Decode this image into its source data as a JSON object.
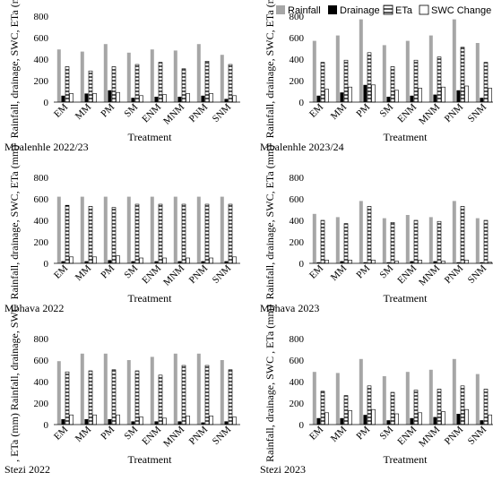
{
  "legend": {
    "entries": [
      {
        "label": "Rainfall",
        "key": "rainfall",
        "color": "#a6a6a6"
      },
      {
        "label": "Drainage",
        "key": "drainage",
        "color": "#000000"
      },
      {
        "label": "ETa",
        "key": "eta",
        "color": "#ffffff"
      },
      {
        "label": "SWC Change",
        "key": "swc",
        "color": "#ffffff"
      }
    ]
  },
  "chart_data": [
    {
      "type": "bar",
      "caption": "Mbalenhle 2022/23",
      "xlabel": "Treatment",
      "ylabel": "Rainfall, drainage, SWC, ETa (mm)",
      "ylim": [
        0,
        800
      ],
      "yticks": [
        0,
        200,
        400,
        600,
        800
      ],
      "categories": [
        "EM",
        "MM",
        "PM",
        "SM",
        "ENM",
        "MNM",
        "PNM",
        "SNM"
      ],
      "series": [
        {
          "name": "Rainfall",
          "values": [
            490,
            470,
            540,
            460,
            490,
            480,
            540,
            440
          ]
        },
        {
          "name": "Drainage",
          "values": [
            60,
            80,
            110,
            40,
            50,
            50,
            60,
            30
          ]
        },
        {
          "name": "ETa",
          "values": [
            330,
            290,
            330,
            350,
            370,
            310,
            380,
            350
          ]
        },
        {
          "name": "SWC Change",
          "values": [
            80,
            80,
            90,
            60,
            70,
            80,
            80,
            60
          ]
        }
      ]
    },
    {
      "type": "bar",
      "caption": "Mbalenhle 2023/24",
      "xlabel": "Treatment",
      "ylabel": "Rainfall, drainage, SWC, ETa (mm)",
      "ylim": [
        0,
        800
      ],
      "yticks": [
        0,
        200,
        400,
        600,
        800
      ],
      "categories": [
        "EM",
        "MM",
        "PM",
        "SM",
        "ENM",
        "MNM",
        "PNM",
        "SNM"
      ],
      "series": [
        {
          "name": "Rainfall",
          "values": [
            570,
            620,
            770,
            530,
            570,
            620,
            770,
            550
          ]
        },
        {
          "name": "Drainage",
          "values": [
            60,
            90,
            160,
            50,
            60,
            70,
            110,
            40
          ]
        },
        {
          "name": "ETa",
          "values": [
            370,
            390,
            460,
            330,
            390,
            420,
            510,
            370
          ]
        },
        {
          "name": "SWC Change",
          "values": [
            120,
            140,
            160,
            110,
            130,
            140,
            150,
            130
          ]
        }
      ]
    },
    {
      "type": "bar",
      "caption": "Mbhava 2022",
      "xlabel": "Treatment",
      "ylabel": "Rainfall, drainage, SWC, ETa (mm)",
      "ylim": [
        0,
        800
      ],
      "yticks": [
        0,
        200,
        400,
        600,
        800
      ],
      "categories": [
        "EM",
        "MM",
        "PM",
        "SM",
        "ENM",
        "MNM",
        "PNM",
        "SNM"
      ],
      "series": [
        {
          "name": "Rainfall",
          "values": [
            620,
            620,
            620,
            620,
            620,
            620,
            620,
            620
          ]
        },
        {
          "name": "Drainage",
          "values": [
            20,
            20,
            30,
            20,
            20,
            20,
            20,
            20
          ]
        },
        {
          "name": "ETa",
          "values": [
            540,
            530,
            520,
            550,
            550,
            550,
            550,
            550
          ]
        },
        {
          "name": "SWC Change",
          "values": [
            60,
            60,
            70,
            50,
            50,
            50,
            50,
            60
          ]
        }
      ]
    },
    {
      "type": "bar",
      "caption": "Mbhava 2023",
      "xlabel": "Treatment",
      "ylabel": "Rainfall, drainage, SWC, ETa (mm)",
      "ylim": [
        0,
        800
      ],
      "yticks": [
        0,
        200,
        400,
        600,
        800
      ],
      "categories": [
        "EM",
        "MM",
        "PM",
        "SM",
        "ENM",
        "MNM",
        "PNM",
        "SNM"
      ],
      "series": [
        {
          "name": "Rainfall",
          "values": [
            460,
            430,
            580,
            420,
            450,
            430,
            580,
            420
          ]
        },
        {
          "name": "Drainage",
          "values": [
            10,
            20,
            10,
            10,
            20,
            20,
            10,
            10
          ]
        },
        {
          "name": "ETa",
          "values": [
            400,
            370,
            530,
            380,
            400,
            390,
            530,
            400
          ]
        },
        {
          "name": "SWC Change",
          "values": [
            30,
            30,
            30,
            20,
            30,
            20,
            30,
            10
          ]
        }
      ]
    },
    {
      "type": "bar",
      "caption": "Stezi 2022",
      "xlabel": "Treatment",
      "ylabel": ", ETa (mm) Rainfall, drainage, SWC",
      "ylim": [
        0,
        800
      ],
      "yticks": [
        0,
        200,
        400,
        600,
        800
      ],
      "categories": [
        "EM",
        "MM",
        "PM",
        "SM",
        "ENM",
        "MNM",
        "PNM",
        "SNM"
      ],
      "series": [
        {
          "name": "Rainfall",
          "values": [
            590,
            660,
            660,
            600,
            630,
            660,
            660,
            600
          ]
        },
        {
          "name": "Drainage",
          "values": [
            50,
            50,
            50,
            30,
            30,
            30,
            20,
            30
          ]
        },
        {
          "name": "ETa",
          "values": [
            490,
            500,
            510,
            500,
            460,
            550,
            550,
            510
          ]
        },
        {
          "name": "SWC Change",
          "values": [
            90,
            90,
            90,
            70,
            60,
            80,
            80,
            70
          ]
        }
      ]
    },
    {
      "type": "bar",
      "caption": "Stezi 2023",
      "xlabel": "Treatment",
      "ylabel": "Rainfall, drainage, SWC , ETa (mm)",
      "ylim": [
        0,
        800
      ],
      "yticks": [
        0,
        200,
        400,
        600,
        800
      ],
      "categories": [
        "EM",
        "MM",
        "PM",
        "SM",
        "ENM",
        "MNM",
        "PNM",
        "SNM"
      ],
      "series": [
        {
          "name": "Rainfall",
          "values": [
            490,
            480,
            610,
            450,
            490,
            510,
            610,
            470
          ]
        },
        {
          "name": "Drainage",
          "values": [
            60,
            60,
            90,
            40,
            60,
            70,
            100,
            40
          ]
        },
        {
          "name": "ETa",
          "values": [
            310,
            270,
            360,
            300,
            320,
            330,
            360,
            330
          ]
        },
        {
          "name": "SWC Change",
          "values": [
            110,
            130,
            140,
            100,
            110,
            120,
            140,
            90
          ]
        }
      ]
    }
  ]
}
